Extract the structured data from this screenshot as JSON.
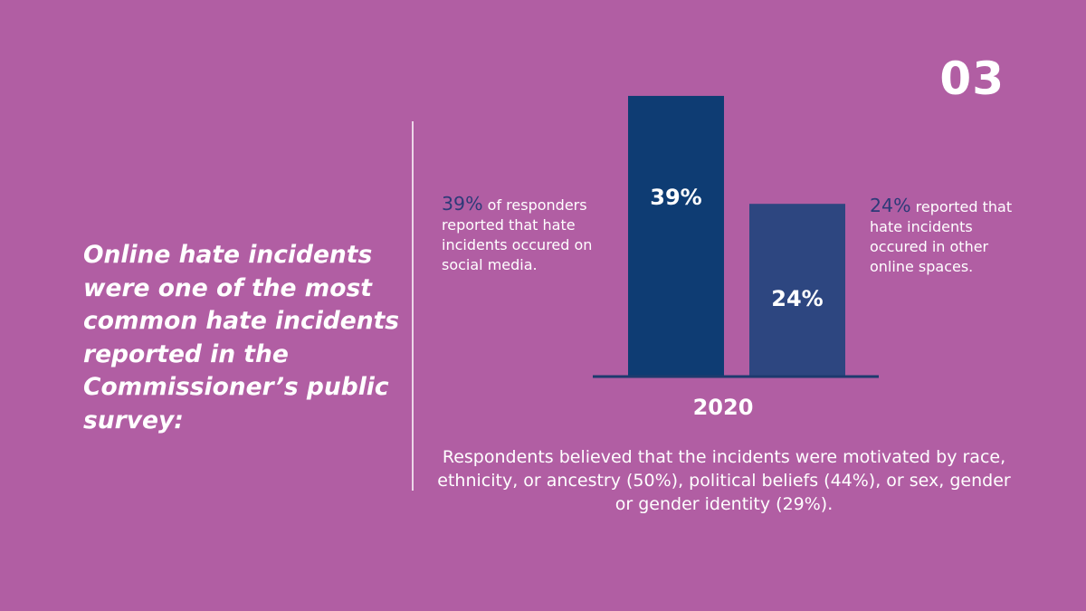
{
  "slide_number": "03",
  "headline": "Online hate incidents were one of the most common hate incidents reported in the Commissioner’s public survey:",
  "callouts": {
    "left": {
      "pct": "39%",
      "text": " of responders reported that hate incidents occured on social media."
    },
    "right": {
      "pct": "24%",
      "text": " reported that hate incidents occured in other online spaces."
    }
  },
  "caption": "Respondents believed that the incidents were motivated by race, ethnicity, or ancestry (50%), political beliefs (44%), or sex, gender or gender identity (29%).",
  "colors": {
    "background": "#b15ea3",
    "bar_social_media": "#0e3c73",
    "bar_other_online": "#2d4680",
    "baseline": "#1d3a6e",
    "accent_text": "#2d3a78"
  },
  "chart_data": {
    "type": "bar",
    "title": "",
    "xlabel": "2020",
    "ylabel": "",
    "ylim": [
      0,
      40
    ],
    "grid": false,
    "series": [
      {
        "name": "Social media",
        "values": [
          39
        ],
        "label": "39%"
      },
      {
        "name": "Other online spaces",
        "values": [
          24
        ],
        "label": "24%"
      }
    ],
    "categories": [
      "2020"
    ]
  }
}
